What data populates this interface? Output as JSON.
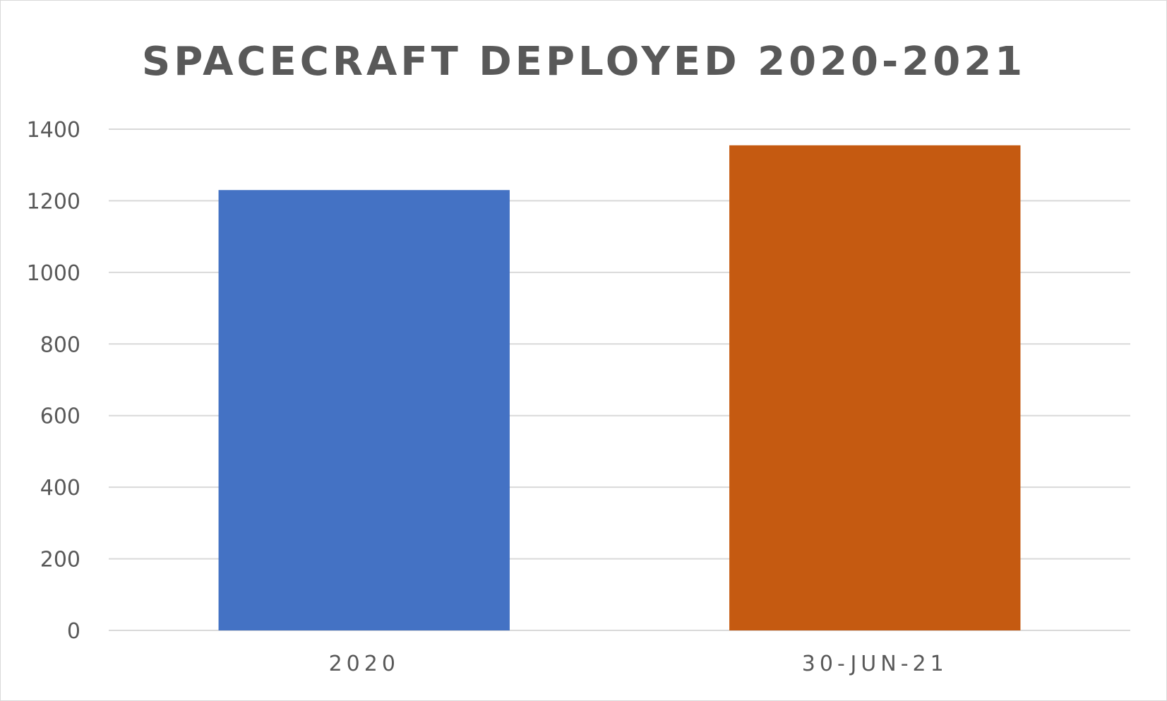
{
  "chart_data": {
    "type": "bar",
    "title": "SPACECRAFT DEPLOYED 2020-2021",
    "categories": [
      "2020",
      "30-JUN-21"
    ],
    "values": [
      1230,
      1355
    ],
    "bar_colors": [
      "#4472C4",
      "#C55A11"
    ],
    "xlabel": "",
    "ylabel": "",
    "ylim": [
      0,
      1400
    ],
    "yticks": [
      "0",
      "200",
      "400",
      "600",
      "800",
      "1000",
      "1200",
      "1400"
    ],
    "grid": true,
    "grid_color": "#d9d9d9",
    "text_color": "#595959",
    "legend": "none"
  }
}
